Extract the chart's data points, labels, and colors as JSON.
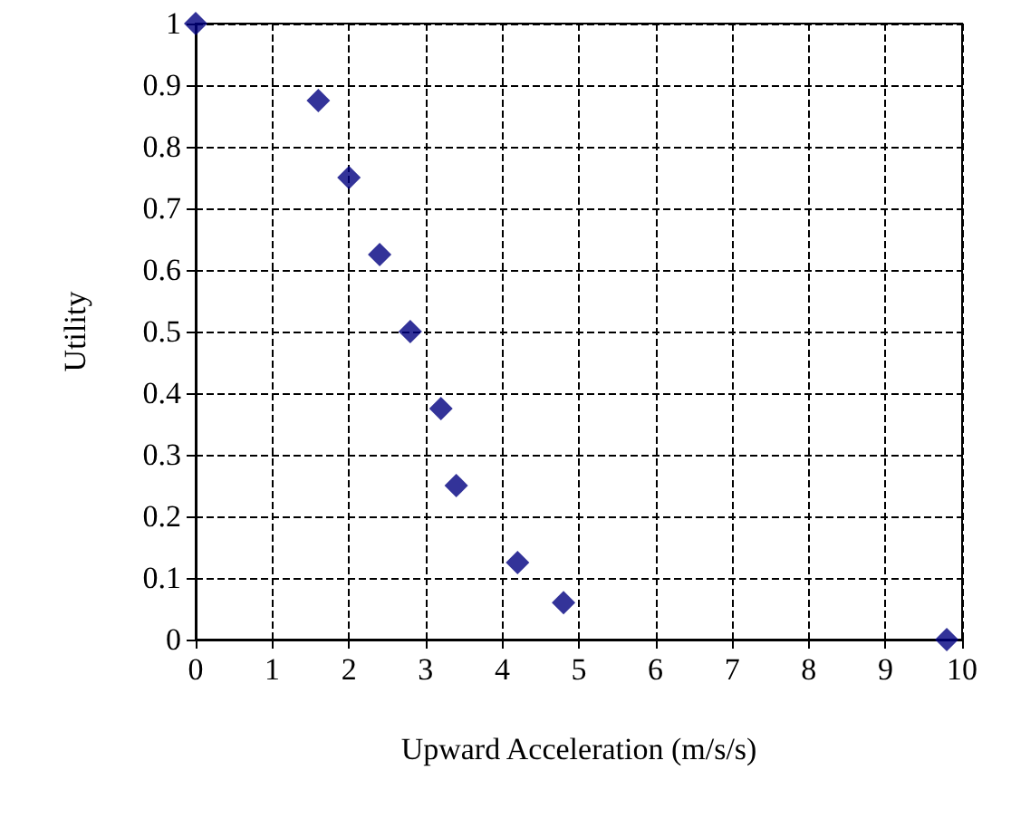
{
  "chart_data": {
    "type": "scatter",
    "xlabel": "Upward Acceleration (m/s/s)",
    "ylabel": "Utility",
    "x": [
      0,
      1.6,
      2,
      2.4,
      2.8,
      3.2,
      3.4,
      4.2,
      4.8,
      9.8
    ],
    "series": [
      {
        "color": "#000080",
        "values": [
          1,
          0.875,
          0.75,
          0.625,
          0.5,
          0.375,
          0.25,
          0.125,
          0.06,
          0
        ]
      }
    ],
    "xlim": [
      0,
      10
    ],
    "xticks": [
      0,
      1,
      2,
      3,
      4,
      5,
      6,
      7,
      8,
      9,
      10
    ],
    "ylim": [
      0,
      1
    ],
    "yticks": [
      0,
      0.1,
      0.2,
      0.3,
      0.4,
      0.5,
      0.6,
      0.7,
      0.8,
      0.9,
      1
    ],
    "grid": true,
    "marker": "diamond"
  }
}
